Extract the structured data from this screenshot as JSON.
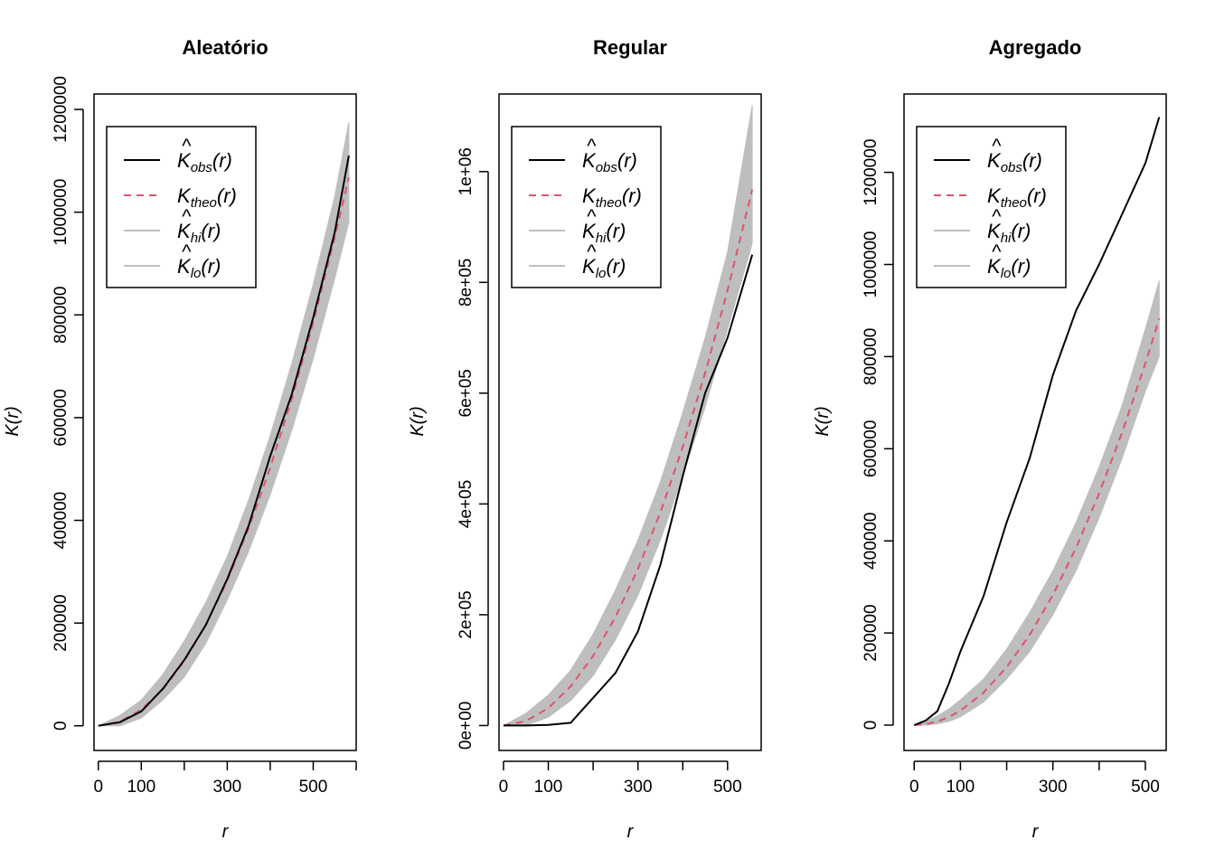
{
  "chart_data": [
    {
      "type": "line",
      "title": "Aleatório",
      "xlabel": "r",
      "ylabel": "K(r)",
      "xlim": [
        -10,
        600
      ],
      "ylim": [
        -48000,
        1230000
      ],
      "x_ticks": [
        0,
        100,
        200,
        300,
        400,
        500,
        600
      ],
      "x_tick_labels": [
        "0",
        "100",
        "",
        "300",
        "",
        "500",
        ""
      ],
      "y_ticks": [
        0,
        200000,
        400000,
        600000,
        800000,
        1000000,
        1200000
      ],
      "y_tick_labels": [
        "0",
        "200000",
        "400000",
        "600000",
        "800000",
        "1000000",
        "1200000"
      ],
      "x": [
        0,
        50,
        100,
        150,
        200,
        250,
        300,
        350,
        400,
        450,
        500,
        550,
        583
      ],
      "series": [
        {
          "name": "obs",
          "values": [
            0,
            7000,
            28000,
            72000,
            128000,
            196000,
            286000,
            390000,
            525000,
            645000,
            795000,
            960000,
            1110000
          ]
        },
        {
          "name": "theo",
          "values": [
            0,
            7850,
            31400,
            70700,
            125700,
            196300,
            282700,
            384800,
            502700,
            636200,
            785400,
            950300,
            1067700
          ]
        },
        {
          "name": "hi",
          "values": [
            0,
            20000,
            50000,
            100000,
            165000,
            240000,
            330000,
            440000,
            565000,
            705000,
            860000,
            1030000,
            1175000
          ]
        },
        {
          "name": "lo",
          "values": [
            0,
            0,
            15000,
            50000,
            95000,
            160000,
            245000,
            340000,
            450000,
            575000,
            715000,
            870000,
            980000
          ]
        }
      ],
      "legend": {
        "position": "top-left",
        "entries": [
          {
            "hat": "^",
            "base": "K",
            "sub": "obs",
            "arg": "(r)",
            "color": "#000000",
            "dash": "solid"
          },
          {
            "hat": "",
            "base": "K",
            "sub": "theo",
            "arg": "(r)",
            "color": "#DF536B",
            "dash": "dashed"
          },
          {
            "hat": "^",
            "base": "K",
            "sub": "hi",
            "arg": "(r)",
            "color": "#BEBEBE",
            "dash": "solid"
          },
          {
            "hat": "^",
            "base": "K",
            "sub": "lo",
            "arg": "(r)",
            "color": "#BEBEBE",
            "dash": "solid"
          }
        ]
      }
    },
    {
      "type": "line",
      "title": "Regular",
      "xlabel": "r",
      "ylabel": "K(r)",
      "xlim": [
        -10,
        575
      ],
      "ylim": [
        -45000,
        1140000
      ],
      "x_ticks": [
        0,
        100,
        200,
        300,
        400,
        500
      ],
      "x_tick_labels": [
        "0",
        "100",
        "",
        "300",
        "",
        "500"
      ],
      "y_ticks": [
        0,
        200000,
        400000,
        600000,
        800000,
        1000000
      ],
      "y_tick_labels": [
        "0e+00",
        "2e+05",
        "4e+05",
        "6e+05",
        "8e+05",
        "1e+06"
      ],
      "x": [
        0,
        50,
        100,
        150,
        200,
        250,
        300,
        350,
        400,
        450,
        500,
        555
      ],
      "series": [
        {
          "name": "obs",
          "values": [
            0,
            0,
            1000,
            5000,
            50000,
            95000,
            170000,
            290000,
            450000,
            600000,
            700000,
            850000
          ]
        },
        {
          "name": "theo",
          "values": [
            0,
            7850,
            31400,
            70700,
            125700,
            196300,
            282700,
            384800,
            502700,
            636200,
            785400,
            967700
          ]
        },
        {
          "name": "hi",
          "values": [
            0,
            22000,
            55000,
            100000,
            165000,
            245000,
            335000,
            440000,
            565000,
            700000,
            855000,
            1120000
          ]
        },
        {
          "name": "lo",
          "values": [
            0,
            0,
            15000,
            45000,
            90000,
            155000,
            235000,
            335000,
            450000,
            575000,
            715000,
            870000
          ]
        }
      ],
      "legend": {
        "position": "top-left",
        "entries": [
          {
            "hat": "^",
            "base": "K",
            "sub": "obs",
            "arg": "(r)",
            "color": "#000000",
            "dash": "solid"
          },
          {
            "hat": "",
            "base": "K",
            "sub": "theo",
            "arg": "(r)",
            "color": "#DF536B",
            "dash": "dashed"
          },
          {
            "hat": "^",
            "base": "K",
            "sub": "hi",
            "arg": "(r)",
            "color": "#BEBEBE",
            "dash": "solid"
          },
          {
            "hat": "^",
            "base": "K",
            "sub": "lo",
            "arg": "(r)",
            "color": "#BEBEBE",
            "dash": "solid"
          }
        ]
      }
    },
    {
      "type": "line",
      "title": "Agregado",
      "xlabel": "r",
      "ylabel": "K(r)",
      "xlim": [
        -22,
        545
      ],
      "ylim": [
        -55000,
        1370000
      ],
      "x_ticks": [
        0,
        100,
        200,
        300,
        400,
        500
      ],
      "x_tick_labels": [
        "0",
        "100",
        "",
        "300",
        "",
        "500"
      ],
      "y_ticks": [
        0,
        200000,
        400000,
        600000,
        800000,
        1000000,
        1200000
      ],
      "y_tick_labels": [
        "0",
        "200000",
        "400000",
        "600000",
        "800000",
        "1000000",
        "1200000"
      ],
      "x": [
        0,
        25,
        50,
        75,
        100,
        150,
        200,
        250,
        300,
        350,
        400,
        450,
        500,
        530
      ],
      "series": [
        {
          "name": "obs",
          "values": [
            0,
            10000,
            30000,
            90000,
            160000,
            280000,
            440000,
            580000,
            760000,
            900000,
            1000000,
            1110000,
            1220000,
            1320000
          ]
        },
        {
          "name": "theo",
          "values": [
            0,
            1960,
            7850,
            17700,
            31400,
            70700,
            125700,
            196300,
            282700,
            384800,
            502700,
            636200,
            785400,
            882500
          ]
        },
        {
          "name": "hi",
          "values": [
            0,
            8000,
            20000,
            35000,
            55000,
            100000,
            165000,
            245000,
            335000,
            440000,
            560000,
            695000,
            860000,
            965000
          ]
        },
        {
          "name": "lo",
          "values": [
            0,
            0,
            3000,
            8000,
            18000,
            50000,
            100000,
            160000,
            240000,
            335000,
            450000,
            580000,
            725000,
            800000
          ]
        }
      ],
      "legend": {
        "position": "top-left",
        "entries": [
          {
            "hat": "^",
            "base": "K",
            "sub": "obs",
            "arg": "(r)",
            "color": "#000000",
            "dash": "solid"
          },
          {
            "hat": "",
            "base": "K",
            "sub": "theo",
            "arg": "(r)",
            "color": "#DF536B",
            "dash": "dashed"
          },
          {
            "hat": "^",
            "base": "K",
            "sub": "hi",
            "arg": "(r)",
            "color": "#BEBEBE",
            "dash": "solid"
          },
          {
            "hat": "^",
            "base": "K",
            "sub": "lo",
            "arg": "(r)",
            "color": "#BEBEBE",
            "dash": "solid"
          }
        ]
      }
    }
  ]
}
